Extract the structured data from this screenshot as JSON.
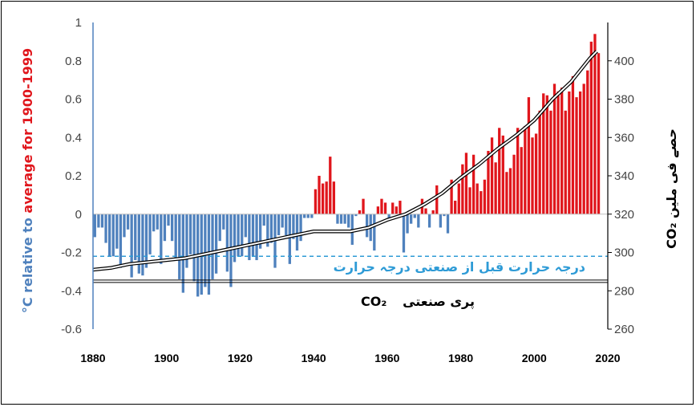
{
  "chart_data": {
    "type": "bar",
    "title": "",
    "xlabel": "",
    "ylabel_parts": [
      {
        "text": "°C relative to",
        "color": "#4f81bd"
      },
      {
        "text": " average for 1900-1999",
        "color": "#e0161c"
      }
    ],
    "y2label": "CO₂ حصے فی ملین",
    "x_ticks": [
      "1880",
      "1900",
      "1920",
      "1940",
      "1960",
      "1980",
      "2000",
      "2020"
    ],
    "y_ticks": [
      "1",
      "0.8",
      "0.6",
      "0.4",
      "0.2",
      "0",
      "-0.2",
      "-0.4",
      "-0.6"
    ],
    "y2_ticks": [
      "400",
      "380",
      "360",
      "340",
      "320",
      "300",
      "280",
      "260"
    ],
    "xlim": [
      1880,
      2020
    ],
    "ylim": [
      -0.6,
      1.0
    ],
    "y2lim": [
      260,
      420
    ],
    "colors": {
      "positive": "#e0161c",
      "negative": "#4f81bd",
      "co2": "#000000",
      "preindustrial_temp": "#2e9bd6"
    },
    "series": [
      {
        "name": "temperature_anomaly",
        "axis": "left",
        "years": [
          1880,
          1881,
          1882,
          1883,
          1884,
          1885,
          1886,
          1887,
          1888,
          1889,
          1890,
          1891,
          1892,
          1893,
          1894,
          1895,
          1896,
          1897,
          1898,
          1899,
          1900,
          1901,
          1902,
          1903,
          1904,
          1905,
          1906,
          1907,
          1908,
          1909,
          1910,
          1911,
          1912,
          1913,
          1914,
          1915,
          1916,
          1917,
          1918,
          1919,
          1920,
          1921,
          1922,
          1923,
          1924,
          1925,
          1926,
          1927,
          1928,
          1929,
          1930,
          1931,
          1932,
          1933,
          1934,
          1935,
          1936,
          1937,
          1938,
          1939,
          1940,
          1941,
          1942,
          1943,
          1944,
          1945,
          1946,
          1947,
          1948,
          1949,
          1950,
          1951,
          1952,
          1953,
          1954,
          1955,
          1956,
          1957,
          1958,
          1959,
          1960,
          1961,
          1962,
          1963,
          1964,
          1965,
          1966,
          1967,
          1968,
          1969,
          1970,
          1971,
          1972,
          1973,
          1974,
          1975,
          1976,
          1977,
          1978,
          1979,
          1980,
          1981,
          1982,
          1983,
          1984,
          1985,
          1986,
          1987,
          1988,
          1989,
          1990,
          1991,
          1992,
          1993,
          1994,
          1995,
          1996,
          1997,
          1998,
          1999,
          2000,
          2001,
          2002,
          2003,
          2004,
          2005,
          2006,
          2007,
          2008,
          2009,
          2010,
          2011,
          2012,
          2013,
          2014,
          2015,
          2016,
          2017
        ],
        "values": [
          -0.12,
          -0.07,
          -0.07,
          -0.15,
          -0.22,
          -0.22,
          -0.18,
          -0.28,
          -0.12,
          -0.08,
          -0.33,
          -0.24,
          -0.31,
          -0.32,
          -0.28,
          -0.21,
          -0.09,
          -0.08,
          -0.26,
          -0.14,
          -0.06,
          -0.14,
          -0.24,
          -0.34,
          -0.41,
          -0.28,
          -0.21,
          -0.35,
          -0.43,
          -0.42,
          -0.38,
          -0.42,
          -0.34,
          -0.31,
          -0.14,
          -0.08,
          -0.3,
          -0.38,
          -0.25,
          -0.22,
          -0.22,
          -0.12,
          -0.24,
          -0.22,
          -0.24,
          -0.18,
          -0.06,
          -0.17,
          -0.15,
          -0.28,
          -0.11,
          -0.07,
          -0.11,
          -0.26,
          -0.13,
          -0.19,
          -0.14,
          -0.02,
          -0.02,
          -0.02,
          0.13,
          0.2,
          0.16,
          0.17,
          0.3,
          0.17,
          -0.05,
          -0.05,
          -0.05,
          -0.07,
          -0.16,
          -0.01,
          0.02,
          0.08,
          -0.12,
          -0.14,
          -0.19,
          0.04,
          0.08,
          0.06,
          -0.02,
          0.06,
          0.04,
          0.07,
          -0.2,
          -0.1,
          -0.05,
          -0.02,
          -0.07,
          0.08,
          0.03,
          -0.07,
          0.02,
          0.15,
          -0.07,
          -0.01,
          -0.1,
          0.18,
          0.07,
          0.16,
          0.26,
          0.32,
          0.14,
          0.31,
          0.16,
          0.12,
          0.18,
          0.33,
          0.4,
          0.27,
          0.45,
          0.41,
          0.22,
          0.24,
          0.31,
          0.45,
          0.35,
          0.46,
          0.61,
          0.4,
          0.42,
          0.54,
          0.63,
          0.62,
          0.54,
          0.68,
          0.64,
          0.66,
          0.54,
          0.64,
          0.72,
          0.61,
          0.64,
          0.68,
          0.75,
          0.9,
          0.94,
          0.84
        ]
      },
      {
        "name": "CO2",
        "axis": "right",
        "years": [
          1880,
          1885,
          1890,
          1895,
          1900,
          1905,
          1910,
          1915,
          1920,
          1925,
          1930,
          1935,
          1940,
          1945,
          1950,
          1955,
          1960,
          1965,
          1970,
          1975,
          1980,
          1985,
          1990,
          1995,
          2000,
          2005,
          2010,
          2015,
          2017
        ],
        "values": [
          291,
          292,
          294,
          295,
          296,
          297,
          299,
          301,
          303,
          305,
          307,
          309,
          311,
          311,
          311,
          313,
          317,
          320,
          325,
          331,
          339,
          346,
          354,
          361,
          369,
          380,
          389,
          401,
          405
        ]
      }
    ],
    "reference_lines": [
      {
        "label": "درجہ حرارت قبل از صنعتی درجہ حرارت",
        "axis": "left",
        "value": -0.22,
        "style": "dashed",
        "color": "#2e9bd6"
      },
      {
        "label_prefix": "پری صنعتی",
        "label_suffix": "CO₂",
        "axis": "right",
        "value": 285,
        "style": "double",
        "color": "#000000"
      }
    ]
  }
}
